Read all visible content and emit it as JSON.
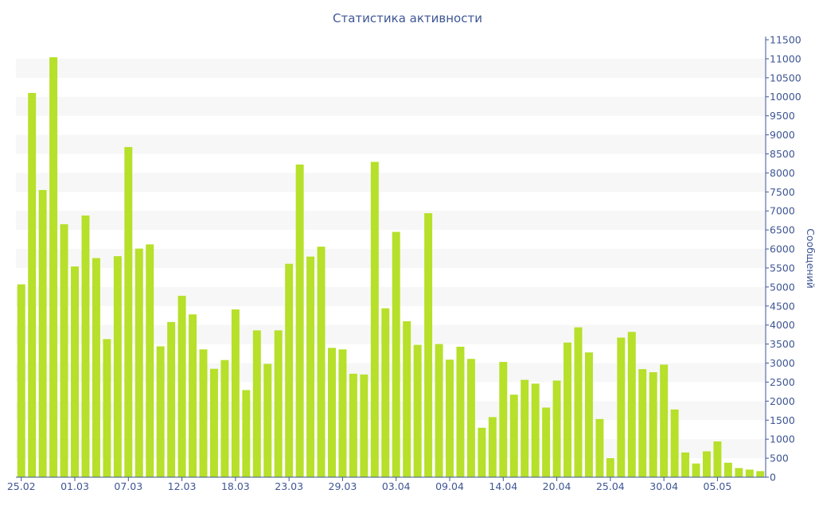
{
  "chart_data": {
    "type": "bar",
    "title": "Статистика активности",
    "ylabel": "Сообщений",
    "ylim": [
      0,
      11500
    ],
    "y_ticks": [
      0,
      500,
      1000,
      1500,
      2000,
      2500,
      3000,
      3500,
      4000,
      4500,
      5000,
      5500,
      6000,
      6500,
      7000,
      7500,
      8000,
      8500,
      9000,
      9500,
      10000,
      10500,
      11000,
      11500
    ],
    "y_axis_position": "right",
    "grid": "alternating horizontal bands",
    "x_tick_labels": [
      {
        "label": "25.02",
        "index": 0
      },
      {
        "label": "01.03",
        "index": 5
      },
      {
        "label": "07.03",
        "index": 10
      },
      {
        "label": "12.03",
        "index": 15
      },
      {
        "label": "18.03",
        "index": 20
      },
      {
        "label": "23.03",
        "index": 25
      },
      {
        "label": "29.03",
        "index": 30
      },
      {
        "label": "03.04",
        "index": 35
      },
      {
        "label": "09.04",
        "index": 40
      },
      {
        "label": "14.04",
        "index": 45
      },
      {
        "label": "20.04",
        "index": 50
      },
      {
        "label": "25.04",
        "index": 55
      },
      {
        "label": "30.04",
        "index": 60
      },
      {
        "label": "05.05",
        "index": 65
      }
    ],
    "values": [
      5070,
      10100,
      7550,
      11040,
      6650,
      5540,
      6880,
      5760,
      3630,
      5810,
      8680,
      6010,
      6120,
      3440,
      4080,
      4770,
      4280,
      3360,
      2850,
      3080,
      4410,
      2290,
      3860,
      2980,
      3860,
      5610,
      8220,
      5800,
      6060,
      3400,
      3360,
      2720,
      2700,
      8290,
      4440,
      6450,
      4100,
      3480,
      6940,
      3500,
      3090,
      3430,
      3110,
      1300,
      1580,
      3030,
      2170,
      2560,
      2460,
      1830,
      2540,
      3540,
      3940,
      3280,
      1530,
      500,
      3670,
      3820,
      2840,
      2760,
      2960,
      1780,
      650,
      360,
      680,
      940,
      380,
      240,
      200,
      160
    ],
    "colors": {
      "bar": "#b6e02a",
      "text": "#3e5694",
      "band": "#f7f7f7",
      "axis": "#3e5694"
    }
  }
}
